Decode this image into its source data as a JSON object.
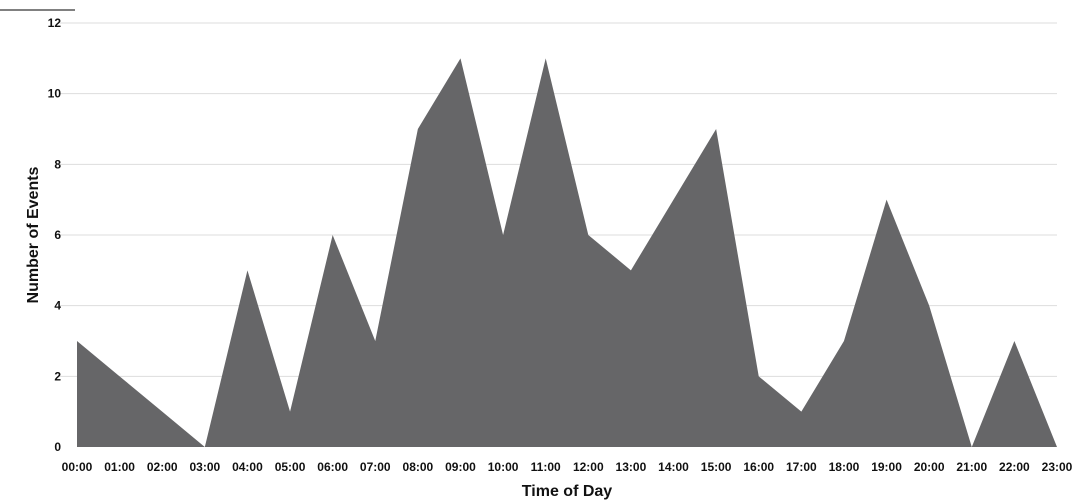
{
  "chart_data": {
    "type": "area",
    "title": "",
    "xlabel": "Time of Day",
    "ylabel": "Number of Events",
    "categories": [
      "00:00",
      "01:00",
      "02:00",
      "03:00",
      "04:00",
      "05:00",
      "06:00",
      "07:00",
      "08:00",
      "09:00",
      "10:00",
      "11:00",
      "12:00",
      "13:00",
      "14:00",
      "15:00",
      "16:00",
      "17:00",
      "18:00",
      "19:00",
      "20:00",
      "21:00",
      "22:00",
      "23:00"
    ],
    "series": [
      {
        "values": [
          3,
          2,
          1,
          0,
          5,
          1,
          6,
          3,
          9,
          11,
          6,
          11,
          6,
          5,
          7,
          9,
          2,
          1,
          3,
          7,
          4,
          0,
          3,
          0
        ]
      }
    ],
    "ylim": [
      0,
      12
    ],
    "yticks": [
      0,
      2,
      4,
      6,
      8,
      10,
      12
    ],
    "grid": true,
    "legend": "none",
    "colors": {
      "fill": "#666668",
      "grid": "#dddddd",
      "text": "#111111"
    }
  }
}
